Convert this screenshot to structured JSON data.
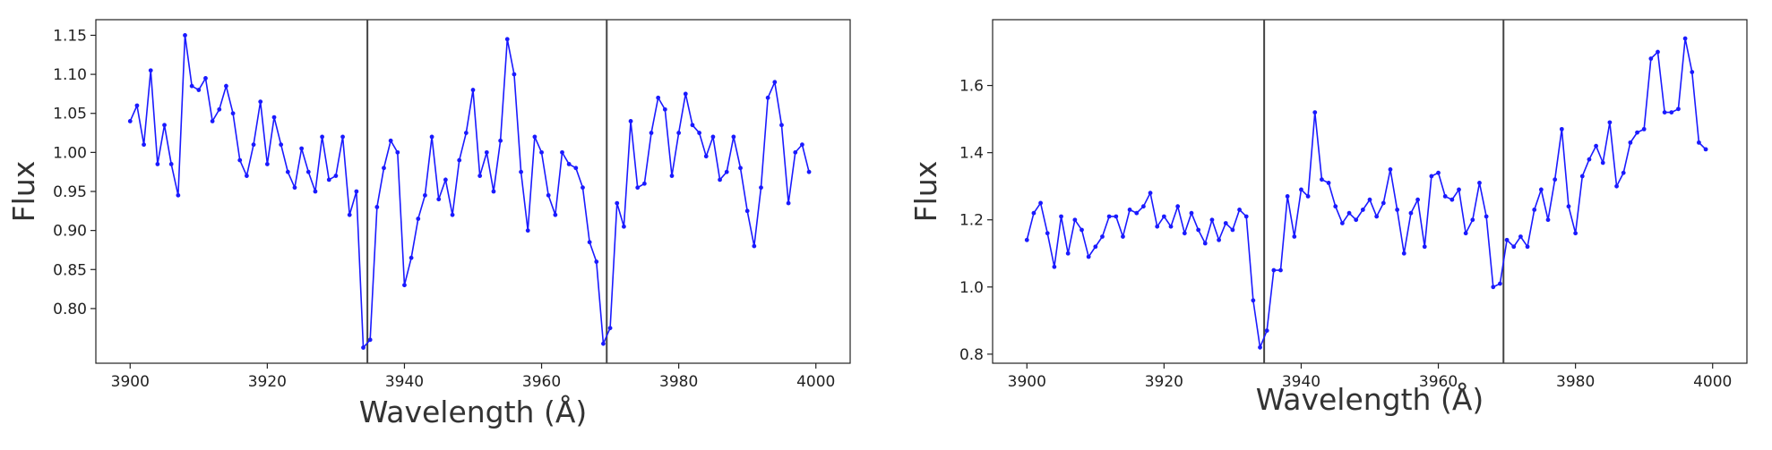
{
  "chart_data": [
    {
      "type": "line",
      "xlabel": "Wavelength (Å)",
      "ylabel": "Flux",
      "x": [
        3900,
        3901,
        3902,
        3903,
        3904,
        3905,
        3906,
        3907,
        3908,
        3909,
        3910,
        3911,
        3912,
        3913,
        3914,
        3915,
        3916,
        3917,
        3918,
        3919,
        3920,
        3921,
        3922,
        3923,
        3924,
        3925,
        3926,
        3927,
        3928,
        3929,
        3930,
        3931,
        3932,
        3933,
        3934,
        3935,
        3936,
        3937,
        3938,
        3939,
        3940,
        3941,
        3942,
        3943,
        3944,
        3945,
        3946,
        3947,
        3948,
        3949,
        3950,
        3951,
        3952,
        3953,
        3954,
        3955,
        3956,
        3957,
        3958,
        3959,
        3960,
        3961,
        3962,
        3963,
        3964,
        3965,
        3966,
        3967,
        3968,
        3969,
        3970,
        3971,
        3972,
        3973,
        3974,
        3975,
        3976,
        3977,
        3978,
        3979,
        3980,
        3981,
        3982,
        3983,
        3984,
        3985,
        3986,
        3987,
        3988,
        3989,
        3990,
        3991,
        3992,
        3993,
        3994,
        3995,
        3996,
        3997,
        3998,
        3999
      ],
      "series": [
        {
          "color": "#1a1aff",
          "values": [
            1.04,
            1.06,
            1.01,
            1.105,
            0.985,
            1.035,
            0.985,
            0.945,
            1.15,
            1.085,
            1.08,
            1.095,
            1.04,
            1.055,
            1.085,
            1.05,
            0.99,
            0.97,
            1.01,
            1.065,
            0.985,
            1.045,
            1.01,
            0.975,
            0.955,
            1.005,
            0.975,
            0.95,
            1.02,
            0.965,
            0.97,
            1.02,
            0.92,
            0.95,
            0.75,
            0.76,
            0.93,
            0.98,
            1.015,
            1.0,
            0.83,
            0.865,
            0.915,
            0.945,
            1.02,
            0.94,
            0.965,
            0.92,
            0.99,
            1.025,
            1.08,
            0.97,
            1.0,
            0.95,
            1.015,
            1.145,
            1.1,
            0.975,
            0.9,
            1.02,
            1.0,
            0.945,
            0.92,
            1.0,
            0.985,
            0.98,
            0.955,
            0.885,
            0.86,
            0.755,
            0.775,
            0.935,
            0.905,
            1.04,
            0.955,
            0.96,
            1.025,
            1.07,
            1.055,
            0.97,
            1.025,
            1.075,
            1.035,
            1.025,
            0.995,
            1.02,
            0.965,
            0.975,
            1.02,
            0.98,
            0.925,
            0.88,
            0.955,
            1.07,
            1.09,
            1.035,
            0.935,
            1.0,
            1.01,
            0.975
          ]
        }
      ],
      "vlines": [
        3934.6,
        3969.5
      ],
      "vline_color": "#444444",
      "xlim": [
        3895,
        4005
      ],
      "ylim": [
        0.73,
        1.17
      ],
      "xticks": [
        3900,
        3920,
        3940,
        3960,
        3980,
        4000
      ],
      "yticks": [
        {
          "value": 0.8,
          "label": "0.80"
        },
        0.85,
        {
          "value": 0.9,
          "label": "0.90"
        },
        0.95,
        {
          "value": 1.0,
          "label": "1.00"
        },
        1.05,
        {
          "value": 1.1,
          "label": "1.10"
        },
        1.15
      ]
    },
    {
      "type": "line",
      "xlabel": "Wavelength (Å)",
      "ylabel": "Flux",
      "x": [
        3900,
        3901,
        3902,
        3903,
        3904,
        3905,
        3906,
        3907,
        3908,
        3909,
        3910,
        3911,
        3912,
        3913,
        3914,
        3915,
        3916,
        3917,
        3918,
        3919,
        3920,
        3921,
        3922,
        3923,
        3924,
        3925,
        3926,
        3927,
        3928,
        3929,
        3930,
        3931,
        3932,
        3933,
        3934,
        3935,
        3936,
        3937,
        3938,
        3939,
        3940,
        3941,
        3942,
        3943,
        3944,
        3945,
        3946,
        3947,
        3948,
        3949,
        3950,
        3951,
        3952,
        3953,
        3954,
        3955,
        3956,
        3957,
        3958,
        3959,
        3960,
        3961,
        3962,
        3963,
        3964,
        3965,
        3966,
        3967,
        3968,
        3969,
        3970,
        3971,
        3972,
        3973,
        3974,
        3975,
        3976,
        3977,
        3978,
        3979,
        3980,
        3981,
        3982,
        3983,
        3984,
        3985,
        3986,
        3987,
        3988,
        3989,
        3990,
        3991,
        3992,
        3993,
        3994,
        3995,
        3996,
        3997,
        3998,
        3999
      ],
      "series": [
        {
          "color": "#1a1aff",
          "values": [
            1.14,
            1.22,
            1.25,
            1.16,
            1.06,
            1.21,
            1.1,
            1.2,
            1.17,
            1.09,
            1.12,
            1.15,
            1.21,
            1.21,
            1.15,
            1.23,
            1.22,
            1.24,
            1.28,
            1.18,
            1.21,
            1.18,
            1.24,
            1.16,
            1.22,
            1.17,
            1.13,
            1.2,
            1.14,
            1.19,
            1.17,
            1.23,
            1.21,
            0.96,
            0.82,
            0.87,
            1.05,
            1.05,
            1.27,
            1.15,
            1.29,
            1.27,
            1.52,
            1.32,
            1.31,
            1.24,
            1.19,
            1.22,
            1.2,
            1.23,
            1.26,
            1.21,
            1.25,
            1.35,
            1.23,
            1.1,
            1.22,
            1.26,
            1.12,
            1.33,
            1.34,
            1.27,
            1.26,
            1.29,
            1.16,
            1.2,
            1.31,
            1.21,
            1.0,
            1.01,
            1.14,
            1.12,
            1.15,
            1.12,
            1.23,
            1.29,
            1.2,
            1.32,
            1.47,
            1.24,
            1.16,
            1.33,
            1.38,
            1.42,
            1.37,
            1.49,
            1.3,
            1.34,
            1.43,
            1.46,
            1.47,
            1.68,
            1.7,
            1.52,
            1.52,
            1.53,
            1.74,
            1.64,
            1.43,
            1.41
          ]
        }
      ],
      "vlines": [
        3934.6,
        3969.5
      ],
      "vline_color": "#444444",
      "xlim": [
        3895,
        4005
      ],
      "ylim": [
        0.773,
        1.796
      ],
      "xticks": [
        3900,
        3920,
        3940,
        3960,
        3980,
        4000
      ],
      "yticks": [
        0.8,
        {
          "value": 1.0,
          "label": "1.0"
        },
        1.2,
        1.4,
        1.6
      ]
    }
  ]
}
